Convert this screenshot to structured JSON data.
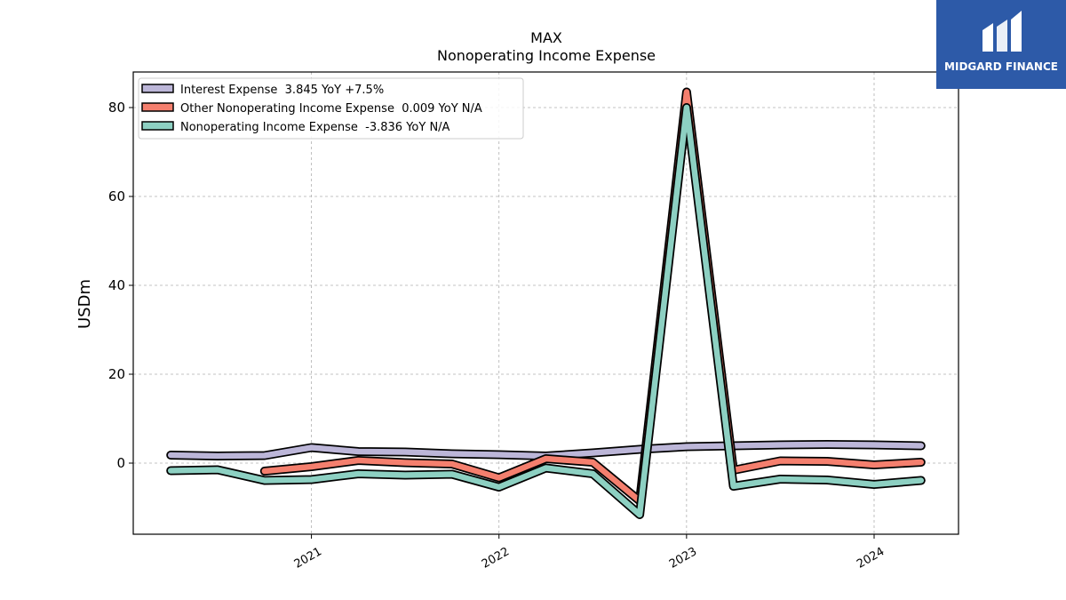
{
  "logo": {
    "text": "MIDGARD FINANCE",
    "color": "#2d5aa8"
  },
  "chart_data": {
    "type": "line",
    "title": "MAX",
    "subtitle": "Nonoperating Income Expense",
    "ylabel": "USDm",
    "xlabel": "",
    "ylim": [
      -16,
      88
    ],
    "xlim": [
      2020.05,
      2024.45
    ],
    "yticks": [
      0,
      20,
      40,
      60,
      80
    ],
    "xticks": [
      2021,
      2022,
      2023,
      2024
    ],
    "grid": true,
    "legend_position": "top-left",
    "series": [
      {
        "name": "Interest Expense  3.845 YoY +7.5%",
        "color": "#bcb6d8",
        "points": [
          [
            2020.25,
            1.8
          ],
          [
            2020.5,
            1.6
          ],
          [
            2020.75,
            1.7
          ],
          [
            2021.0,
            3.5
          ],
          [
            2021.25,
            2.6
          ],
          [
            2021.5,
            2.5
          ],
          [
            2021.75,
            2.1
          ],
          [
            2022.0,
            1.9
          ],
          [
            2022.25,
            1.6
          ],
          [
            2022.5,
            2.3
          ],
          [
            2022.75,
            3.1
          ],
          [
            2023.0,
            3.7
          ],
          [
            2023.25,
            3.9
          ],
          [
            2023.5,
            4.1
          ],
          [
            2023.75,
            4.2
          ],
          [
            2024.0,
            4.1
          ],
          [
            2024.25,
            3.9
          ]
        ]
      },
      {
        "name": "Other Nonoperating Income Expense  0.009 YoY N/A",
        "color": "#f47f6e",
        "points": [
          [
            2020.75,
            -1.8
          ],
          [
            2021.0,
            -0.8
          ],
          [
            2021.25,
            0.6
          ],
          [
            2021.5,
            0.1
          ],
          [
            2021.75,
            -0.2
          ],
          [
            2022.0,
            -3.3
          ],
          [
            2022.25,
            1.0
          ],
          [
            2022.5,
            0.2
          ],
          [
            2022.75,
            -8.5
          ],
          [
            2023.0,
            83.5
          ],
          [
            2023.25,
            -1.6
          ],
          [
            2023.5,
            0.5
          ],
          [
            2023.75,
            0.4
          ],
          [
            2024.0,
            -0.4
          ],
          [
            2024.25,
            0.2
          ]
        ]
      },
      {
        "name": "Nonoperating Income Expense  -3.836 YoY N/A",
        "color": "#8dd0c2",
        "points": [
          [
            2020.25,
            -1.7
          ],
          [
            2020.5,
            -1.5
          ],
          [
            2020.75,
            -3.9
          ],
          [
            2021.0,
            -3.7
          ],
          [
            2021.25,
            -2.4
          ],
          [
            2021.5,
            -2.7
          ],
          [
            2021.75,
            -2.5
          ],
          [
            2022.0,
            -5.4
          ],
          [
            2022.25,
            -1.1
          ],
          [
            2022.5,
            -2.4
          ],
          [
            2022.75,
            -11.6
          ],
          [
            2023.0,
            80.0
          ],
          [
            2023.25,
            -5.2
          ],
          [
            2023.5,
            -3.6
          ],
          [
            2023.75,
            -3.8
          ],
          [
            2024.0,
            -4.8
          ],
          [
            2024.25,
            -3.9
          ]
        ]
      }
    ]
  }
}
